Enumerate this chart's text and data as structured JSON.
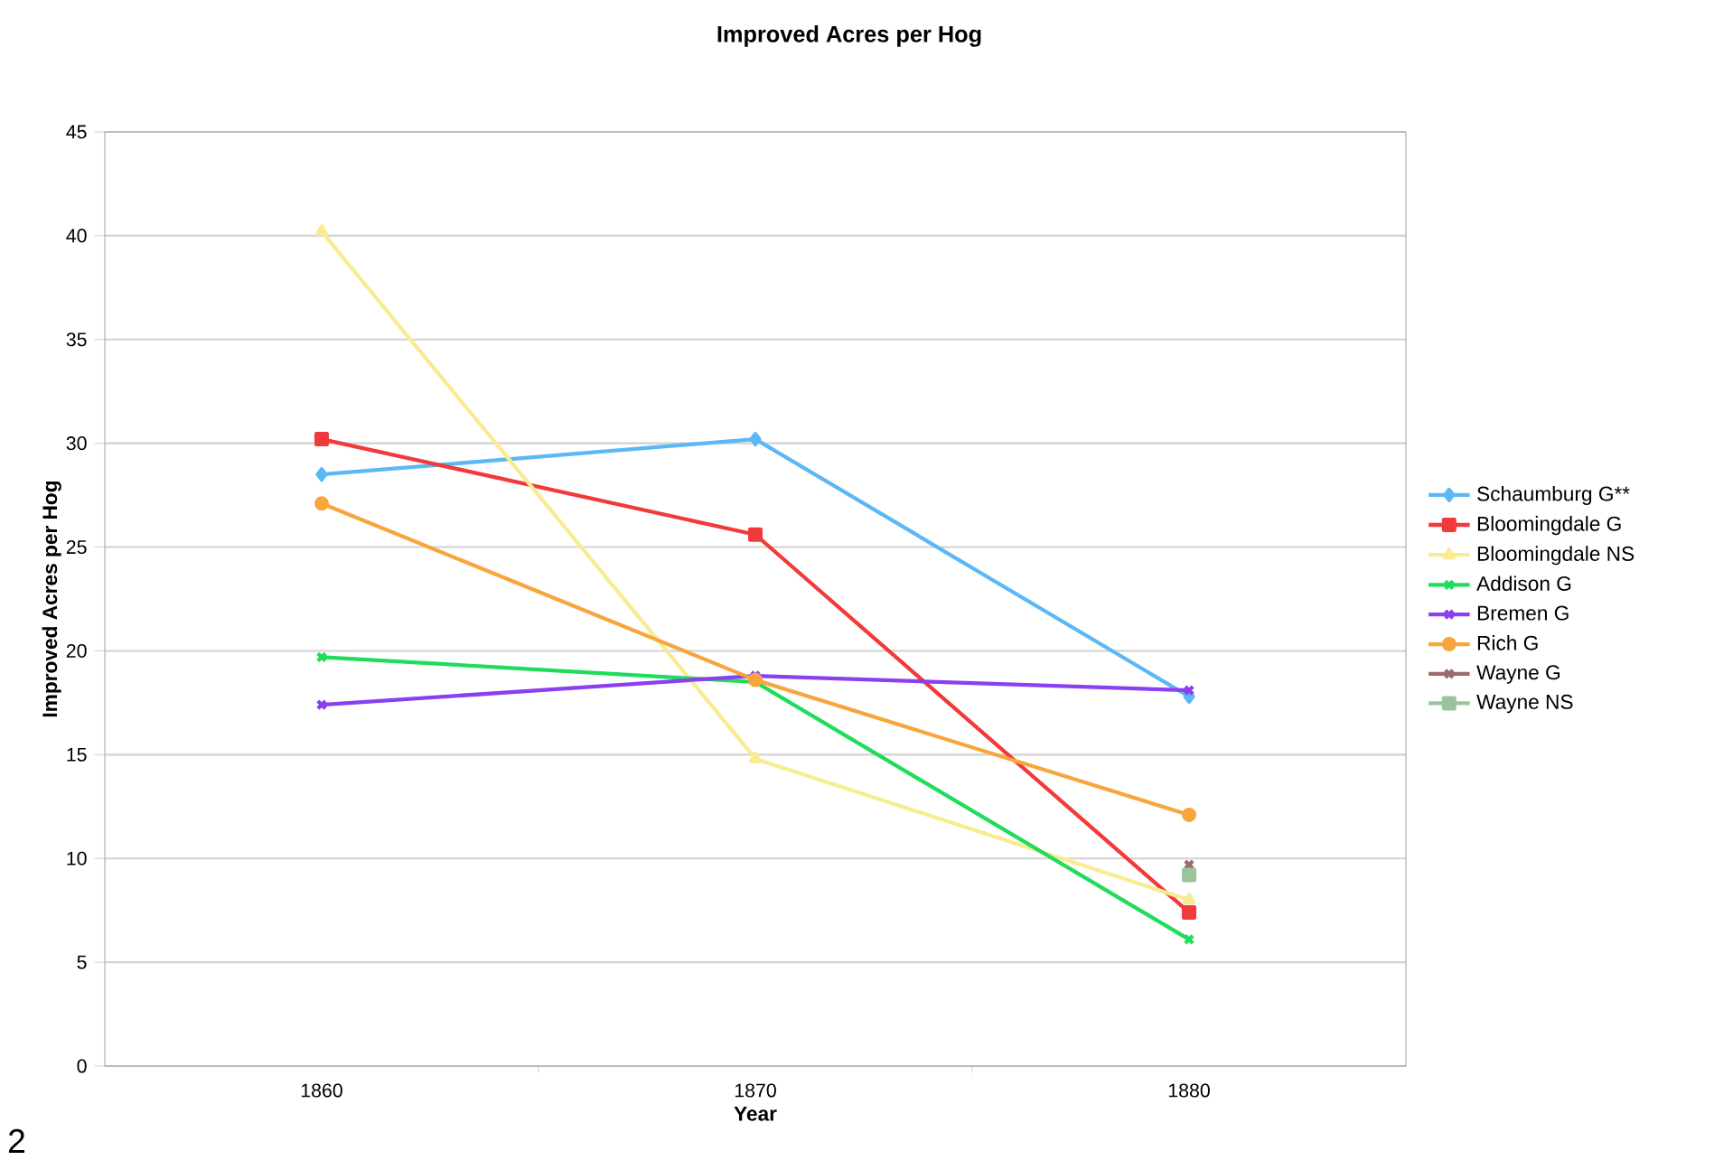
{
  "chart_data": {
    "type": "line",
    "title": "Improved Acres per Hog",
    "xlabel": "Year",
    "ylabel": "Improved Acres per Hog",
    "categories": [
      "1860",
      "1870",
      "1880"
    ],
    "ylim": [
      0,
      45
    ],
    "yticks": [
      0,
      5,
      10,
      15,
      20,
      25,
      30,
      35,
      40,
      45
    ],
    "grid": "y",
    "legend": "right",
    "annotations": [
      "2"
    ],
    "series": [
      {
        "name": "Schaumburg G**",
        "color": "#5bb8f5",
        "marker": "diamond",
        "values": [
          28.5,
          30.2,
          17.8
        ]
      },
      {
        "name": "Bloomingdale G",
        "color": "#f23a3a",
        "marker": "square",
        "values": [
          30.2,
          25.6,
          7.4
        ]
      },
      {
        "name": "Bloomingdale NS",
        "color": "#f8ec92",
        "marker": "triangle",
        "values": [
          40.2,
          14.8,
          8.0
        ]
      },
      {
        "name": "Addison G",
        "color": "#1fdc5a",
        "marker": "cross",
        "values": [
          19.7,
          18.5,
          6.1
        ]
      },
      {
        "name": "Bremen G",
        "color": "#8a3ff0",
        "marker": "cross",
        "values": [
          17.4,
          18.8,
          18.1
        ]
      },
      {
        "name": "Rich G",
        "color": "#f8a53c",
        "marker": "circle",
        "values": [
          27.1,
          18.6,
          12.1
        ]
      },
      {
        "name": "Wayne G",
        "color": "#9c6c6c",
        "marker": "cross",
        "values": [
          null,
          null,
          9.7
        ]
      },
      {
        "name": "Wayne NS",
        "color": "#9cc49c",
        "marker": "square",
        "values": [
          null,
          null,
          9.2
        ]
      }
    ]
  }
}
